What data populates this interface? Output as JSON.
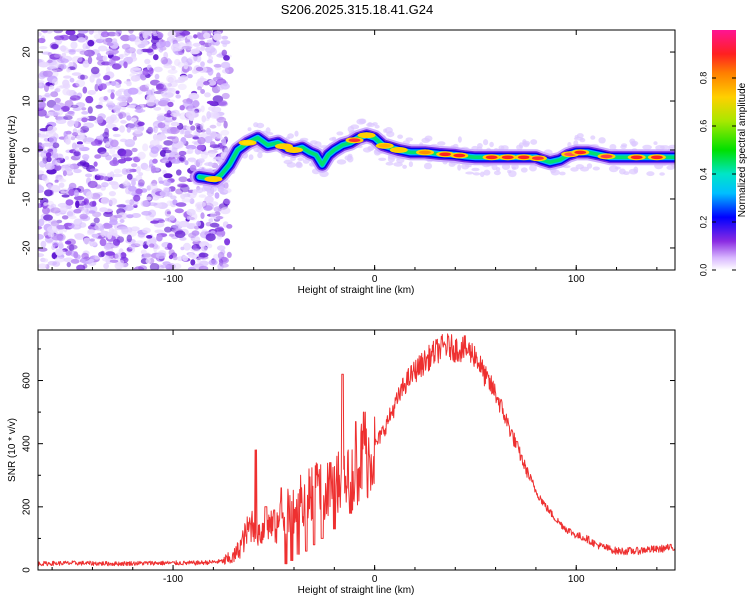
{
  "figure": {
    "title": "S206.2025.315.18.41.G24"
  },
  "chart_data": [
    {
      "type": "heatmap",
      "name": "spectrogram",
      "title": "S206.2025.315.18.41.G24",
      "xlabel": "Height of straight line (km)",
      "ylabel": "Frequency (Hz)",
      "xlim": [
        -167,
        149
      ],
      "ylim": [
        -24.5,
        24.5
      ],
      "x_ticks": [
        -100,
        0,
        100
      ],
      "y_ticks": [
        -20,
        -10,
        0,
        10,
        20
      ],
      "noise_region_x": [
        -167,
        -76
      ],
      "ridge": {
        "x": [
          -87,
          -82,
          -79,
          -76,
          -72,
          -68,
          -63,
          -58,
          -53,
          -48,
          -44,
          -40,
          -36,
          -32,
          -29,
          -26,
          -23,
          -20,
          -16,
          -12,
          -8,
          -4,
          0,
          4,
          8,
          12,
          18,
          25,
          32,
          40,
          45,
          50,
          55,
          60,
          70,
          80,
          83,
          87,
          92,
          96,
          100,
          106,
          112,
          117,
          122,
          128,
          134,
          140,
          146,
          149
        ],
        "y": [
          -5.5,
          -5.8,
          -6.0,
          -5.0,
          -3.0,
          0.0,
          1.5,
          2.5,
          1.0,
          1.5,
          0.5,
          0.0,
          0.5,
          -0.5,
          -1.0,
          -3.0,
          -1.0,
          0.0,
          1.0,
          1.5,
          2.5,
          3.0,
          2.5,
          1.0,
          0.5,
          0.0,
          -0.5,
          -0.5,
          -0.8,
          -1.0,
          -1.3,
          -1.5,
          -1.5,
          -1.5,
          -1.5,
          -1.5,
          -2.0,
          -2.5,
          -2.0,
          -1.0,
          -0.5,
          -0.5,
          -1.0,
          -1.5,
          -1.5,
          -1.5,
          -1.5,
          -1.5,
          -1.5,
          -1.5
        ]
      },
      "colorbar": {
        "label": "Normalized spectral amplitude",
        "range": [
          0,
          1
        ],
        "ticks": [
          "0.0",
          "0.2",
          "0.4",
          "0.6",
          "0.8"
        ]
      }
    },
    {
      "type": "line",
      "name": "snr",
      "xlabel": "Height of straight line (km)",
      "ylabel": "SNR (10 * v/v)",
      "xlim": [
        -167,
        149
      ],
      "ylim": [
        0,
        760
      ],
      "x_ticks": [
        -100,
        0,
        100
      ],
      "y_ticks": [
        0,
        200,
        400,
        600
      ],
      "series": [
        {
          "name": "SNR",
          "color": "#ee3030",
          "x": [
            -167,
            -150,
            -130,
            -110,
            -90,
            -80,
            -75,
            -70,
            -67,
            -64,
            -61,
            -59,
            -56,
            -53,
            -50,
            -47,
            -44,
            -41,
            -38,
            -35,
            -32,
            -29,
            -26,
            -23,
            -20,
            -17,
            -14,
            -12,
            -10,
            -8,
            -6,
            -4,
            -2,
            0,
            5,
            10,
            15,
            20,
            25,
            30,
            35,
            40,
            45,
            50,
            55,
            60,
            65,
            70,
            75,
            80,
            85,
            90,
            95,
            100,
            105,
            110,
            115,
            120,
            125,
            130,
            135,
            140,
            145,
            149
          ],
          "y": [
            20,
            22,
            20,
            22,
            22,
            25,
            28,
            40,
            70,
            110,
            150,
            130,
            120,
            150,
            120,
            160,
            180,
            190,
            200,
            230,
            250,
            260,
            240,
            250,
            260,
            280,
            260,
            310,
            300,
            330,
            360,
            350,
            370,
            390,
            450,
            520,
            590,
            630,
            660,
            690,
            710,
            700,
            700,
            680,
            610,
            560,
            480,
            400,
            320,
            250,
            200,
            160,
            130,
            110,
            100,
            80,
            70,
            60,
            60,
            60,
            65,
            65,
            70,
            70
          ]
        }
      ],
      "spikes": [
        {
          "x": -59,
          "y": 380
        },
        {
          "x": -54,
          "y": 200
        },
        {
          "x": -50,
          "y": 190
        },
        {
          "x": -46,
          "y": 260
        },
        {
          "x": -41,
          "y": 280
        },
        {
          "x": -37,
          "y": 300
        },
        {
          "x": -33,
          "y": 320
        },
        {
          "x": -29,
          "y": 330
        },
        {
          "x": -26,
          "y": 290
        },
        {
          "x": -22,
          "y": 340
        },
        {
          "x": -19,
          "y": 360
        },
        {
          "x": -16,
          "y": 620
        },
        {
          "x": -13,
          "y": 380
        },
        {
          "x": -9,
          "y": 470
        },
        {
          "x": -5,
          "y": 500
        }
      ],
      "dips": [
        {
          "x": -44,
          "y": 20
        },
        {
          "x": -41,
          "y": 30
        },
        {
          "x": -38,
          "y": 50
        },
        {
          "x": -34,
          "y": 60
        },
        {
          "x": -30,
          "y": 80
        },
        {
          "x": -26,
          "y": 100
        },
        {
          "x": -20,
          "y": 130
        },
        {
          "x": -12,
          "y": 180
        }
      ]
    }
  ]
}
